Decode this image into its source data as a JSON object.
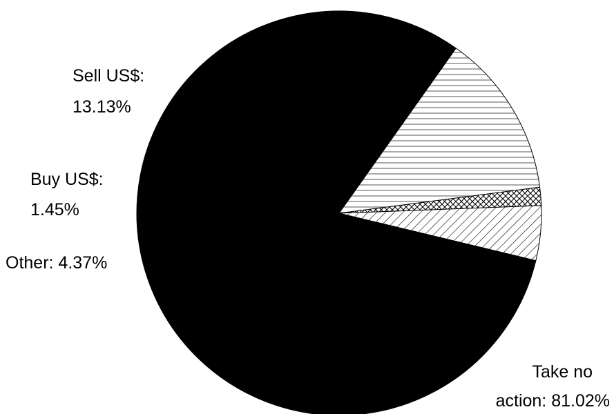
{
  "chart_data": {
    "type": "pie",
    "title": "",
    "slices": [
      {
        "name": "Take no action",
        "value": 81.02,
        "label_line1": "Take no",
        "label_line2": "action: 81.02%",
        "fill": "solid-black"
      },
      {
        "name": "Other",
        "value": 4.37,
        "label_line1": "Other: 4.37%",
        "label_line2": "",
        "fill": "diagonal-hatch"
      },
      {
        "name": "Buy US$",
        "value": 1.45,
        "label_line1": "Buy US$:",
        "label_line2": "1.45%",
        "fill": "cross-hatch"
      },
      {
        "name": "Sell US$",
        "value": 13.13,
        "label_line1": "Sell US$:",
        "label_line2": "13.13%",
        "fill": "horizontal-lines"
      }
    ],
    "colors": {
      "primary": "#000000",
      "background": "#ffffff"
    },
    "legend": "none"
  }
}
